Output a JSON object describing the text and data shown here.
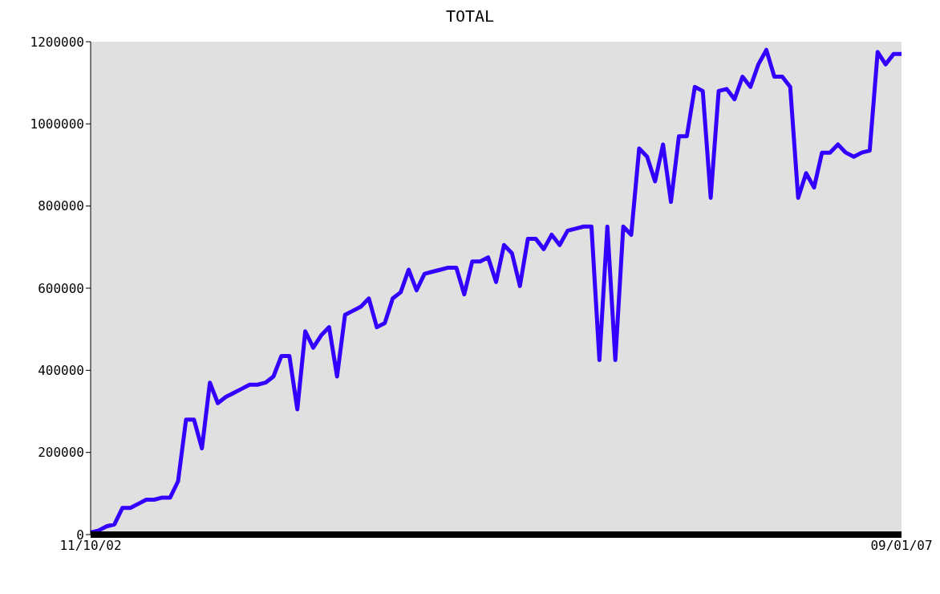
{
  "chart_data": {
    "type": "line",
    "title": "TOTAL",
    "categories": [
      "11/10/02",
      null,
      null,
      null,
      null,
      null,
      null,
      null,
      null,
      null,
      null,
      null,
      null,
      null,
      null,
      null,
      null,
      null,
      null,
      null,
      null,
      null,
      null,
      null,
      null,
      null,
      null,
      null,
      null,
      null,
      null,
      null,
      null,
      null,
      null,
      null,
      null,
      null,
      null,
      null,
      null,
      null,
      null,
      null,
      null,
      null,
      null,
      null,
      null,
      null,
      null,
      null,
      null,
      null,
      null,
      null,
      null,
      null,
      null,
      null,
      null,
      null,
      null,
      null,
      null,
      null,
      null,
      null,
      null,
      null,
      null,
      null,
      null,
      null,
      null,
      null,
      null,
      null,
      null,
      null,
      null,
      null,
      null,
      null,
      null,
      null,
      null,
      null,
      null,
      null,
      null,
      null,
      null,
      null,
      null,
      null,
      null,
      null,
      null,
      null,
      null,
      null,
      "09/01/07"
    ],
    "series": [
      {
        "color": "#3300ff",
        "values": [
          5000,
          10000,
          20000,
          25000,
          65000,
          65000,
          75000,
          85000,
          85000,
          90000,
          90000,
          130000,
          280000,
          280000,
          210000,
          370000,
          320000,
          335000,
          345000,
          355000,
          365000,
          365000,
          370000,
          385000,
          435000,
          435000,
          305000,
          495000,
          455000,
          485000,
          505000,
          385000,
          535000,
          545000,
          555000,
          575000,
          505000,
          515000,
          575000,
          590000,
          645000,
          595000,
          635000,
          640000,
          645000,
          650000,
          650000,
          585000,
          665000,
          665000,
          675000,
          615000,
          705000,
          685000,
          605000,
          720000,
          720000,
          695000,
          730000,
          705000,
          740000,
          745000,
          750000,
          750000,
          425000,
          750000,
          425000,
          750000,
          730000,
          940000,
          920000,
          860000,
          950000,
          810000,
          970000,
          970000,
          1090000,
          1080000,
          820000,
          1080000,
          1085000,
          1060000,
          1115000,
          1090000,
          1145000,
          1180000,
          1115000,
          1115000,
          1090000,
          820000,
          880000,
          845000,
          930000,
          930000,
          950000,
          930000,
          920000,
          930000,
          935000,
          1175000,
          1145000,
          1170000,
          1170000
        ]
      }
    ],
    "ylim": [
      0,
      1200000
    ],
    "yticks": [
      0,
      200000,
      400000,
      600000,
      800000,
      1000000,
      1200000
    ],
    "grid": false,
    "legend": false,
    "marker": "none",
    "line_style": "solid"
  }
}
